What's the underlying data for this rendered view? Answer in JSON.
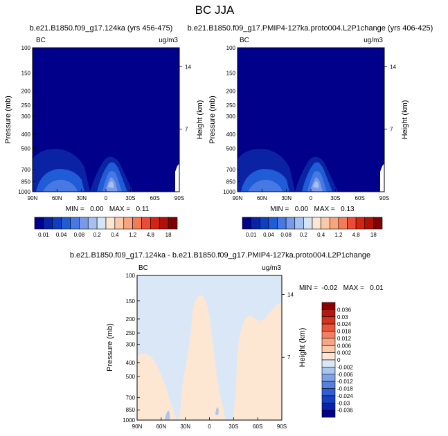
{
  "figure_title": "BC JJA",
  "chart_data": [
    {
      "type": "contour",
      "panel": "left",
      "title": "b.e21.B1850.f09_g17.124ka (yrs 456-475)",
      "left_label": "BC",
      "right_label": "ug/m3",
      "ylabel": "Pressure (mb)",
      "ylabel_right": "Height (km)",
      "x_ticks": [
        "90N",
        "60N",
        "30N",
        "0",
        "30S",
        "60S",
        "90S"
      ],
      "y_ticks": [
        "100",
        "150",
        "200",
        "250",
        "300",
        "400",
        "500",
        "700",
        "850",
        "1000"
      ],
      "y_ticks_right": [
        "14",
        "7"
      ],
      "stats": "MIN =   0.00   MAX =   0.11",
      "colorbar": {
        "orientation": "horizontal",
        "labels": [
          "0.01",
          "0.04",
          "0.08",
          "0.2",
          "0.4",
          "1.2",
          "4.8",
          "18"
        ],
        "colors": [
          "#00008b",
          "#0a23a5",
          "#0f3fbe",
          "#1f5cd6",
          "#4778e4",
          "#789ae9",
          "#a6c0ef",
          "#d6e4f6",
          "#fde6d4",
          "#fbc9a8",
          "#f8a47f",
          "#f47a58",
          "#ec4c35",
          "#d62412",
          "#b0100a",
          "#7f0000"
        ]
      }
    },
    {
      "type": "contour",
      "panel": "right",
      "title": "b.e21.B1850.f09_g17.PMIP4-127ka.proto004.L2P1change (yrs 406-425)",
      "left_label": "BC",
      "right_label": "ug/m3",
      "ylabel": "Pressure (mb)",
      "ylabel_right": "Height (km)",
      "x_ticks": [
        "90N",
        "60N",
        "30N",
        "0",
        "30S",
        "60S",
        "90S"
      ],
      "y_ticks": [
        "100",
        "150",
        "200",
        "250",
        "300",
        "400",
        "500",
        "700",
        "850",
        "1000"
      ],
      "y_ticks_right": [
        "14",
        "7"
      ],
      "stats": "MIN =   0.00   MAX =   0.13",
      "colorbar": {
        "orientation": "horizontal",
        "labels": [
          "0.01",
          "0.04",
          "0.08",
          "0.2",
          "0.4",
          "1.2",
          "4.8",
          "18"
        ],
        "colors": [
          "#00008b",
          "#0a23a5",
          "#0f3fbe",
          "#1f5cd6",
          "#4778e4",
          "#789ae9",
          "#a6c0ef",
          "#d6e4f6",
          "#fde6d4",
          "#fbc9a8",
          "#f8a47f",
          "#f47a58",
          "#ec4c35",
          "#d62412",
          "#b0100a",
          "#7f0000"
        ]
      }
    },
    {
      "type": "contour",
      "panel": "difference",
      "title": "b.e21.B1850.f09_g17.124ka - b.e21.B1850.f09_g17.PMIP4-127ka.proto004.L2P1change",
      "left_label": "BC",
      "right_label": "ug/m3",
      "ylabel": "Pressure (mb)",
      "ylabel_right": "Height (km)",
      "x_ticks": [
        "90N",
        "60N",
        "30N",
        "0",
        "30S",
        "60S",
        "90S"
      ],
      "y_ticks": [
        "100",
        "150",
        "200",
        "250",
        "300",
        "400",
        "500",
        "700",
        "850",
        "1000"
      ],
      "y_ticks_right": [
        "14",
        "7"
      ],
      "stats": "MIN =  -0.02   MAX =   0.01",
      "colorbar": {
        "orientation": "vertical",
        "labels": [
          "0.036",
          "0.03",
          "0.024",
          "0.018",
          "0.012",
          "0.006",
          "0.002",
          "0",
          "-0.002",
          "-0.006",
          "-0.012",
          "-0.018",
          "-0.024",
          "-0.03",
          "-0.036"
        ],
        "colors": [
          "#8b0000",
          "#b11a10",
          "#d2331e",
          "#e8553a",
          "#f47f5f",
          "#f8a585",
          "#fbc8aa",
          "#fde7d3",
          "#d9e7f7",
          "#aac6ee",
          "#7ea2e6",
          "#5580dd",
          "#2f5ed3",
          "#1640c2",
          "#0b22a8",
          "#00008b"
        ]
      }
    }
  ]
}
